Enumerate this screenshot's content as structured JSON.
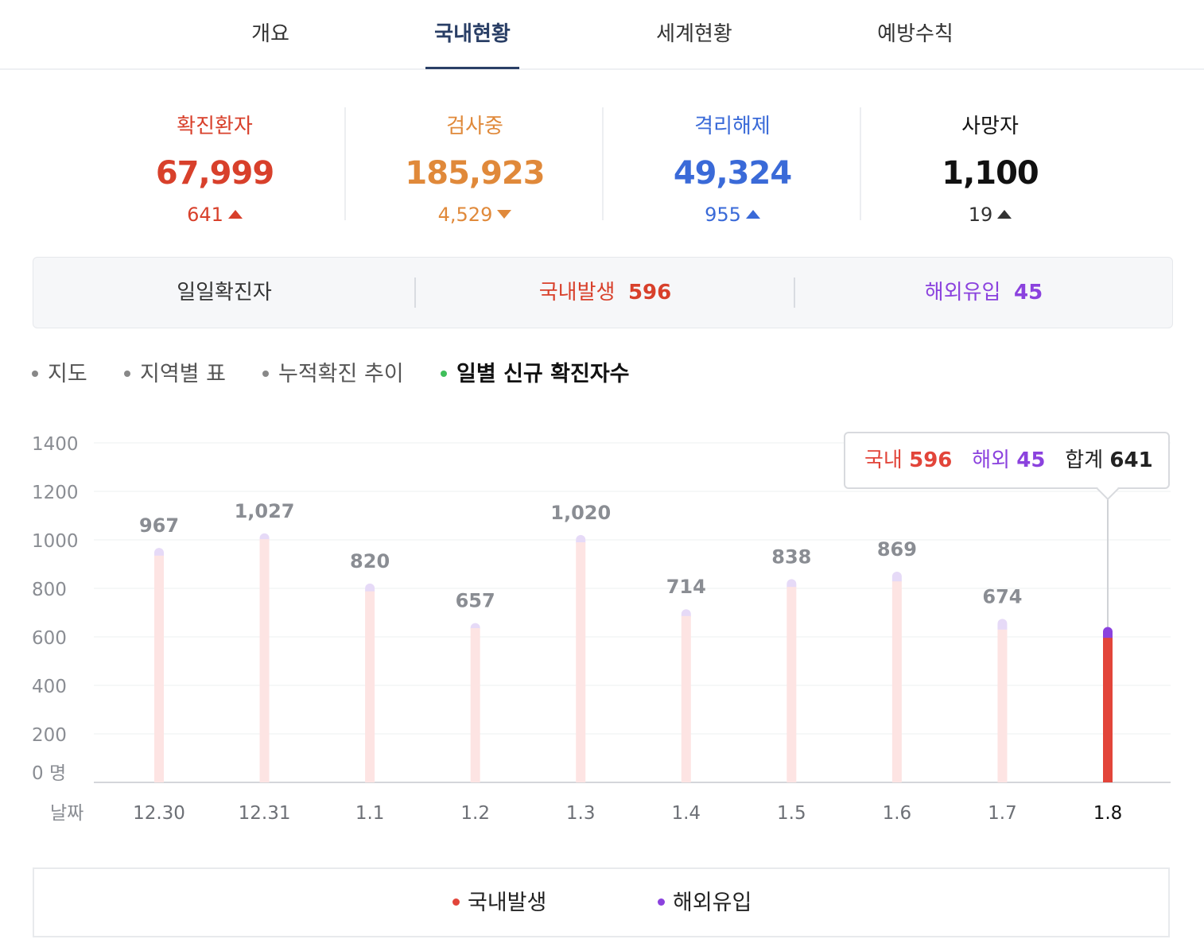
{
  "tabs": [
    {
      "label": "개요",
      "active": false
    },
    {
      "label": "국내현황",
      "active": true
    },
    {
      "label": "세계현황",
      "active": false
    },
    {
      "label": "예방수칙",
      "active": false
    }
  ],
  "stats": [
    {
      "label": "확진환자",
      "value": "67,999",
      "delta": "641",
      "direction": "up",
      "color": "#d8402b"
    },
    {
      "label": "검사중",
      "value": "185,923",
      "delta": "4,529",
      "direction": "down",
      "color": "#e0893a"
    },
    {
      "label": "격리해제",
      "value": "49,324",
      "delta": "955",
      "direction": "up",
      "color": "#3a6ad8"
    },
    {
      "label": "사망자",
      "value": "1,100",
      "delta": "19",
      "direction": "up",
      "color": "#111111"
    }
  ],
  "daily": {
    "title": "일일확진자",
    "domestic_label": "국내발생",
    "domestic_value": "596",
    "overseas_label": "해외유입",
    "overseas_value": "45"
  },
  "subtabs": [
    {
      "label": "지도",
      "active": false
    },
    {
      "label": "지역별 표",
      "active": false
    },
    {
      "label": "누적확진 추이",
      "active": false
    },
    {
      "label": "일별 신규 확진자수",
      "active": true
    }
  ],
  "tooltip": {
    "domestic_label": "국내",
    "domestic_value": "596",
    "overseas_label": "해외",
    "overseas_value": "45",
    "total_label": "합계",
    "total_value": "641"
  },
  "chart_data": {
    "type": "bar",
    "stacked": true,
    "categories": [
      "12.30",
      "12.31",
      "1.1",
      "1.2",
      "1.3",
      "1.4",
      "1.5",
      "1.6",
      "1.7",
      "1.8"
    ],
    "totals": [
      967,
      1027,
      820,
      657,
      1020,
      714,
      838,
      869,
      674,
      641
    ],
    "total_labels": [
      "967",
      "1,027",
      "820",
      "657",
      "1,020",
      "714",
      "838",
      "869",
      "674",
      ""
    ],
    "series": [
      {
        "name": "국내발생",
        "values": [
          935,
          1003,
          788,
          636,
          990,
          686,
          806,
          829,
          630,
          596
        ],
        "color": "#e2453a",
        "faded_color": "#fde4e3"
      },
      {
        "name": "해외유입",
        "values": [
          32,
          24,
          32,
          21,
          30,
          28,
          32,
          40,
          44,
          45
        ],
        "color": "#8b42de",
        "faded_color": "#e6daf7"
      }
    ],
    "highlight_index": 9,
    "y_ticks": [
      "1400",
      "1200",
      "1000",
      "800",
      "600",
      "400",
      "200",
      "0 명"
    ],
    "ylim": [
      0,
      1400
    ],
    "x_axis_label": "날짜",
    "grid": true
  },
  "legend": [
    {
      "label": "국내발생",
      "color": "#e2453a"
    },
    {
      "label": "해외유입",
      "color": "#8b42de"
    }
  ]
}
